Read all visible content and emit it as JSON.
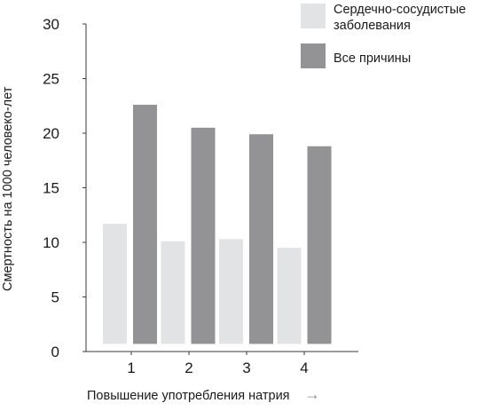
{
  "chart_data": {
    "type": "bar",
    "categories": [
      "1",
      "2",
      "3",
      "4"
    ],
    "series": [
      {
        "name": "Сердечно-сосудистые заболевания",
        "name_lines": [
          "Сердечно-сосудистые",
          "заболевания"
        ],
        "values": [
          11.7,
          10.1,
          10.3,
          9.5
        ],
        "color": "#e2e3e5"
      },
      {
        "name": "Все причины",
        "name_lines": [
          "Все причины"
        ],
        "values": [
          22.6,
          20.5,
          19.9,
          18.8
        ],
        "color": "#939395"
      }
    ],
    "bar_baseline": 0.7,
    "ylim": [
      0,
      30
    ],
    "yticks": [
      0,
      5,
      10,
      15,
      20,
      25,
      30
    ],
    "ylabel": "Смертность на 1000 человеко-лет",
    "xlabel": "Повышение употребления натрия",
    "xlabel_arrow": "→",
    "grid": false,
    "legend_position": "top-right"
  }
}
